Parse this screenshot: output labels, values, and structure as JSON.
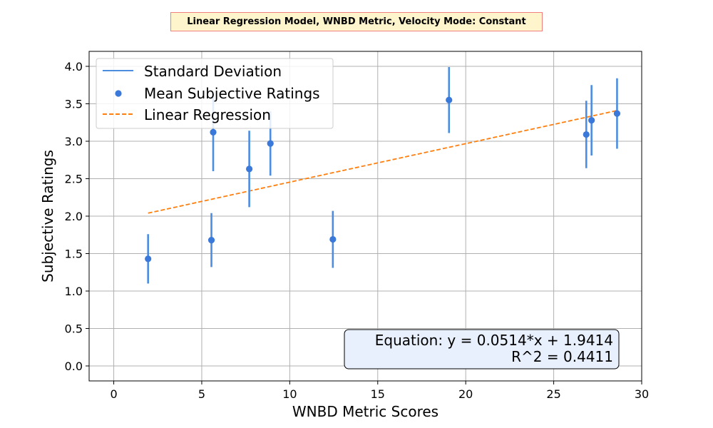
{
  "chart_data": {
    "type": "scatter",
    "title": "Linear Regression Model, WNBD Metric, Velocity Mode: Constant",
    "xlabel": "WNBD Metric Scores",
    "ylabel": "Subjective Ratings",
    "xlim": [
      -1.4,
      30
    ],
    "ylim": [
      -0.2,
      4.2
    ],
    "xticks": [
      0,
      5,
      10,
      15,
      20,
      25,
      30
    ],
    "yticks": [
      "0.0",
      "0.5",
      "1.0",
      "1.5",
      "2.0",
      "2.5",
      "3.0",
      "3.5",
      "4.0"
    ],
    "grid": true,
    "legend_position": "top-left",
    "series": [
      {
        "name": "Mean Subjective Ratings",
        "type": "scatter",
        "color": "#3a78d9",
        "x": [
          1.95,
          5.55,
          5.65,
          7.7,
          8.9,
          12.45,
          19.05,
          26.85,
          27.15,
          28.6
        ],
        "y": [
          1.43,
          1.68,
          3.12,
          2.63,
          2.97,
          1.69,
          3.55,
          3.09,
          3.28,
          3.37
        ],
        "std": [
          0.33,
          0.36,
          0.52,
          0.51,
          0.43,
          0.38,
          0.44,
          0.45,
          0.47,
          0.47
        ]
      },
      {
        "name": "Standard Deviation",
        "type": "errorbar",
        "color": "#4c8de0"
      },
      {
        "name": "Linear Regression",
        "type": "line",
        "style": "dashed",
        "color": "#ff7f0e",
        "x": [
          1.95,
          28.6
        ],
        "y": [
          2.04,
          3.41
        ]
      }
    ],
    "legend": [
      "Standard Deviation",
      "Mean Subjective Ratings",
      "Linear Regression"
    ],
    "annotation": {
      "equation": "Equation: y = 0.0514*x + 1.9414",
      "r2": "R^2 = 0.4411",
      "background": "#e8f0fd",
      "position": "bottom-right"
    }
  }
}
